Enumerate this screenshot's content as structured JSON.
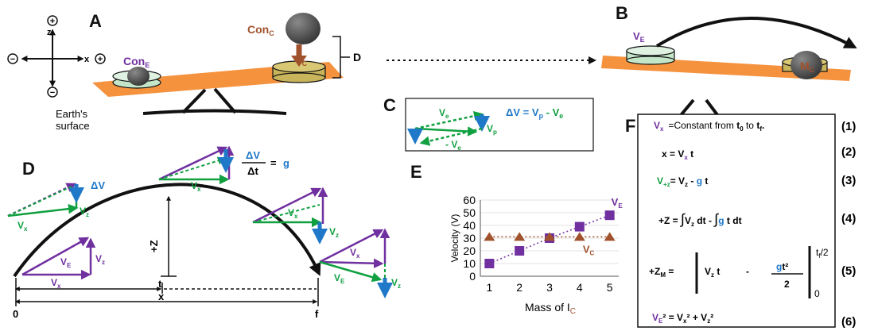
{
  "colors": {
    "purple": "#7030a0",
    "green": "#10a040",
    "blue": "#1f78c8",
    "orange": "#f5923e",
    "brown": "#a0522d",
    "tan": "#c8b45a",
    "mint": "#c3e6c8",
    "black": "#111111"
  },
  "panels": {
    "a": "A",
    "b": "B",
    "c": "C",
    "d": "D",
    "e": "E",
    "f": "F"
  },
  "panel_a": {
    "axis_plus": "+",
    "axis_minus": "−",
    "z_label": "z",
    "x_label": "x",
    "con_c": "Con",
    "con_c_sub": "C",
    "con_e": "Con",
    "con_e_sub": "E",
    "v_c": "V",
    "v_c_sub": "C",
    "d_label": "D",
    "earth_line1": "Earth's",
    "earth_line2": "surface"
  },
  "panel_b": {
    "v_e": "V",
    "v_e_sub": "E",
    "m_label": "M",
    "m_sub": "C"
  },
  "panel_c": {
    "ve": "V",
    "ve_sub": "e",
    "vp": "V",
    "vp_sub": "p",
    "neg_ve": "- V",
    "neg_ve_sub": "e",
    "eq_lhs": "ΔV = V",
    "eq_p": "p",
    "eq_mid": " - V",
    "eq_e": "e"
  },
  "panel_d": {
    "dv": "ΔV",
    "frac_num": "ΔV",
    "frac_den": "Δt",
    "frac_eq": "= ",
    "g": "g",
    "vz": "V",
    "vz_sub": "z",
    "vx": "V",
    "vx_sub": "x",
    "ve": "V",
    "ve_sub": "E",
    "plus_z": "+Z",
    "t": "t",
    "x": "x",
    "zero": "0",
    "f": "f"
  },
  "chart_data": {
    "type": "scatter",
    "xlabel": "Mass of I",
    "xlabel_sub": "C",
    "ylabel": "Velocity (V)",
    "xlim": [
      0.7,
      5.3
    ],
    "ylim": [
      0,
      60
    ],
    "xticks": [
      1,
      2,
      3,
      4,
      5
    ],
    "yticks": [
      0,
      10,
      20,
      30,
      40,
      50,
      60
    ],
    "series": [
      {
        "name": "V_E",
        "label": "V",
        "label_sub": "E",
        "marker": "square",
        "color": "#7030a0",
        "x": [
          1,
          2,
          3,
          4,
          5
        ],
        "y": [
          10,
          20,
          30,
          39,
          48
        ]
      },
      {
        "name": "V_C",
        "label": "V",
        "label_sub": "C",
        "marker": "triangle",
        "color": "#a0522d",
        "x": [
          1,
          2,
          3,
          4,
          5
        ],
        "y": [
          31,
          31,
          31,
          31,
          31
        ]
      }
    ]
  },
  "panel_f": {
    "eq1_a": "V",
    "eq1_a_sub": "x",
    "eq1_b": "=Constant from ",
    "eq1_t0": "t",
    "eq1_t0_sub": "0",
    "eq1_to": " to ",
    "eq1_tf": "t",
    "eq1_tf_sub": "f",
    "eq1_dot": ".",
    "eq2": "x = V",
    "eq2_sub": "x",
    "eq2_t": " t",
    "eq3_lhs": "V",
    "eq3_lhs_sub": "+z",
    "eq3_eq": "= V",
    "eq3_vz_sub": "z",
    "eq3_minus": " - ",
    "eq3_g": "g",
    "eq3_t": " t",
    "eq4_lhs": "+Z = ",
    "eq4_int": "∫",
    "eq4_v": "V",
    "eq4_v_sub": "z",
    "eq4_dt": " dt  - ",
    "eq4_int2": "∫",
    "eq4_g": "g",
    "eq4_tail": " t dt",
    "eq5_lhs": "+Z",
    "eq5_lhs_sub": "M",
    "eq5_eq": " =",
    "eq5_v": "V",
    "eq5_v_sub": "z",
    "eq5_t": " t",
    "eq5_minus": "-",
    "eq5_g": "g",
    "eq5_t2": "t²",
    "eq5_den": "2",
    "eq5_upper": "t",
    "eq5_upper_sub": "f",
    "eq5_upper_tail": "/2",
    "eq5_lower": "0",
    "eq6_a": "V",
    "eq6_a_sub": "E",
    "eq6_b": "² = V",
    "eq6_c_sub": "x",
    "eq6_d": "² + V",
    "eq6_e_sub": "z",
    "eq6_f": "²",
    "n1": "(1)",
    "n2": "(2)",
    "n3": "(3)",
    "n4": "(4)",
    "n5": "(5)",
    "n6": "(6)"
  }
}
